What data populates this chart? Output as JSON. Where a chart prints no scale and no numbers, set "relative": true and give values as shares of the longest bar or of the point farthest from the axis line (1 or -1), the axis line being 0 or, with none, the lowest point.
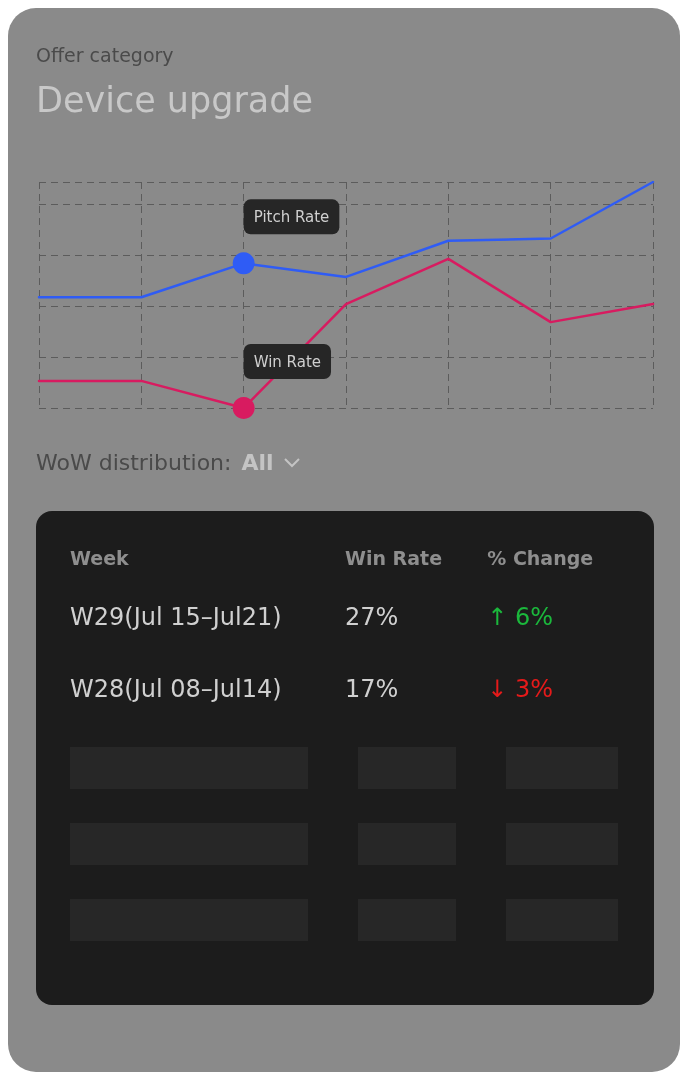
{
  "chart_data": [
    {
      "type": "line",
      "subtitle": "Offer category",
      "title": "Device upgrade",
      "relative": true,
      "grid": true,
      "categories": [
        null,
        null,
        null,
        null,
        null,
        null,
        null
      ],
      "series": [
        {
          "name": "Pitch Rate",
          "color": "#2f5cf5",
          "values": [
            0.49,
            0.49,
            0.64,
            0.58,
            0.74,
            0.75,
            1
          ]
        },
        {
          "name": "Win Rate",
          "color": "#d81b60",
          "values": [
            0.12,
            0.12,
            0,
            0.46,
            0.66,
            0.38,
            0.46
          ]
        }
      ]
    },
    {
      "type": "other",
      "annotations": [
        "WoW distribution:",
        "All",
        "Week",
        "Win Rate",
        "% Change",
        "W29(Jul 15–Jul21)",
        "27%",
        "↑ 6%",
        "W28(Jul 08–Jul14)",
        "17%",
        "↓ 3%"
      ],
      "colors": [
        "#4a4a4a",
        "#c4c4c4",
        "#8e8e8e",
        "#8e8e8e",
        "#8e8e8e",
        "#d0d0d0",
        "#d0d0d0",
        "#1bb83c",
        "#d0d0d0",
        "#d0d0d0",
        "#e51a1a"
      ]
    }
  ]
}
